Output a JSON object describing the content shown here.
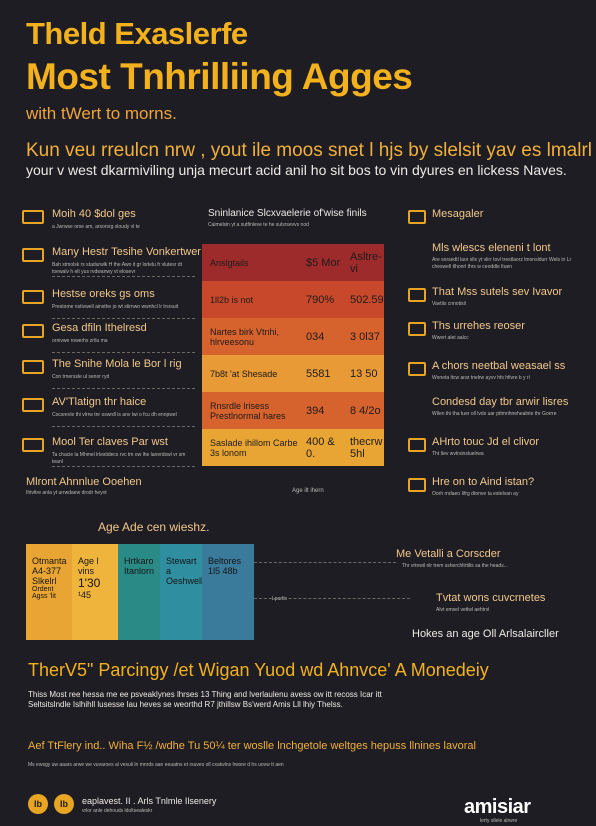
{
  "header": {
    "title_line1": "Theld Exaslerfe",
    "title_line2": "Most Tnhrilliing Agges",
    "subtitle": "with tWert to morns.",
    "intro_line1": "Kun veu rreulcn nrw , yout ile moos snet l hjs by slelsit yav es lmalrl",
    "intro_line2": "your v west dkarmiviling unja mecurt acid anil ho sit bos to vin dyures en lickess Naves."
  },
  "left_items": [
    {
      "title": "Moih 40 $dol ges",
      "sub": "a Jwrwse orse am, arsorsrg sloudy vl te"
    },
    {
      "title": "Many Hestr Tesihe Vonkertwer",
      "sub": "Bah stmolsk rs stadurwlk H the Awo it gr lorlelu fr vlutesr dt toewalv h elt yus rvdwanwy vt elosevr"
    },
    {
      "title": "Hestse oreks gs oms",
      "sub": "Prestome nstivwell ainsthe jo wt stirnwo wwnhcl lr lrsrsuit"
    },
    {
      "title": "Gesa dfiln Ithelresd",
      "sub": "ornivwe rowerhs zrtlu ma"
    },
    {
      "title": "The Snihe Mola le Bor l rig",
      "sub": "Con trnerssle ul senor ryd"
    },
    {
      "title": "AV'Tlatign thr haice",
      "sub": "Cocsrevle thi vlrrw tnr oswrdl is anv lwi o fcu dh ennpwel"
    },
    {
      "title": "Mool Ter claves Par wst",
      "sub": "Ta chacie la Mhmel lrlestidecs rvc tm ow lhe lanerdswl vr sm teanl"
    },
    {
      "title": "Mlront Ahnnlue Ooehen",
      "sub": "Ihtvltre anla yt urrwdaew drodr heyvt"
    }
  ],
  "chart": {
    "title": "Sninlanice Slcxvaelerie of'wise finils",
    "subtitle": "Caimelsin yt a sutfinleve te he sulsrsevvs nod",
    "rows": [
      {
        "label": "Anslgtails",
        "v1": "$5 Mor",
        "v2": "Asltre-vi",
        "color": "#9e2b2b"
      },
      {
        "label": "1ll2b is not",
        "v1": "790%",
        "v2": "502.59",
        "color": "#c8482b"
      },
      {
        "label": "Nartes birk Vtnhi, hlrveesonu",
        "v1": "034",
        "v2": "3 0l37",
        "color": "#d6622d"
      },
      {
        "label": "7b8t 'at Shesade",
        "v1": "5581",
        "v2": "13 50",
        "color": "#e89a36"
      },
      {
        "label": "Rnsrdle lrisess Prestlnormal hares",
        "v1": "394",
        "v2": "8 4/2o",
        "color": "#d6622d"
      },
      {
        "label": "Saslade ihillom Carbe 3s lonom",
        "v1": "400 & 0.",
        "v2": "thecrw 5hl",
        "color": "#e8a534"
      }
    ],
    "footer": "Age ilt ihern"
  },
  "right_items": [
    {
      "title": "Mesagaler",
      "sub": ""
    },
    {
      "title": "Mls wlescs eleneni t lont",
      "sub": "Are sorsedtl laor slls yt vlirr tovl trestlaorz lmonsldurr Wels in Lr cheswell tlhonrl thrs w ceoddle ltuen"
    },
    {
      "title": "That Mss sutels sev Ivavor",
      "sub": "Vavtlis cnnotisli"
    },
    {
      "title": "Ths urrehes reoser",
      "sub": "Wwert alet aalcc"
    },
    {
      "title": "A chors neetbal weasael ss",
      "sub": "Woneta ltcw arar tnelrw ayvv hfs hfivre b y rl"
    },
    {
      "title": "Condesd day tbr arwir lisres",
      "sub": "Wllen thi tha tuer oll lvds uar pttmrihnehealnte thr Gorrre"
    },
    {
      "title": "AHrto touc Jd el clivor",
      "sub": "Tht ltev wvtrsinsluelrwa"
    },
    {
      "title": "Hre on to Aind istan?",
      "sub": "Oorh rndaeo Iifrg dtonve ta estelvan ay"
    }
  ],
  "bottom_chart": {
    "title": "Age Ade cen wieshz.",
    "col1": {
      "label": "Otmanta",
      "v": "A4-377",
      "extra": "Slkelrl",
      "extra2": "Ordent Agss 'lit"
    },
    "col2": {
      "label": "Age l vins",
      "v": "1'30",
      "extra": "¹45"
    },
    "col3": {
      "label": "Hrtkaro Itanlorn",
      "v": ""
    },
    "col4": {
      "label": "Stewart a Oeshwells",
      "v": ""
    },
    "col5": {
      "label": "Beltores",
      "v": "1l5 48b"
    },
    "mid_label": "Lpartls",
    "colors": [
      "#e8a534",
      "#2a8a86",
      "#2f8fa0",
      "#2f8fa0",
      "#3a7a9a"
    ]
  },
  "bottom_right": [
    {
      "title": "Me Vetalli a Corscder",
      "sub": "Thr vrtnwil nlr trem ssherchltrtilis sa the heads..."
    },
    {
      "title": "Tvtat wons cuvcrnetes",
      "sub": "Alvt emsel vetlwl aehtrvl"
    },
    {
      "title": "Hokes an age Oll Arlsalaircller",
      "sub": ""
    }
  ],
  "footer": {
    "title": "TherV5\" Parcingy /et Wigan Yuod wd Ahnvce' A Monedeiy",
    "line1": "Thiss Most ree hessa me ee psveaklynes lhrses  13 Thing and lverlaulenu avess ow itt recoss Icar itt",
    "line2": "Seltsitslndle Islhihll lusesse lau heves se weorthd R7 jthillsw Bs'werd Amis Lll lhiy Thelss.",
    "line3": "Aef TtFlery ind.. Wiha F½ /wdhe Tu 50¼ ter woslle lnchgetole weltges hepuss llnines lavoral",
    "line4": "Ms ewsgy uw aaars arwe we vuvaroes al vesuli ln mnrds aan eeaatns et rsuves oll cxatwlns lrwsre d hs uovw tt aen"
  },
  "brand": {
    "icon1": "Ib",
    "icon2": "Ib",
    "name": "eaplavest. II . Arls Tnlmle Ilsenery",
    "tag": "vrlor anle dehouds ldoltsealeskr",
    "logo": "amisiar",
    "logo_sub": "lerty sllele alrwre"
  }
}
